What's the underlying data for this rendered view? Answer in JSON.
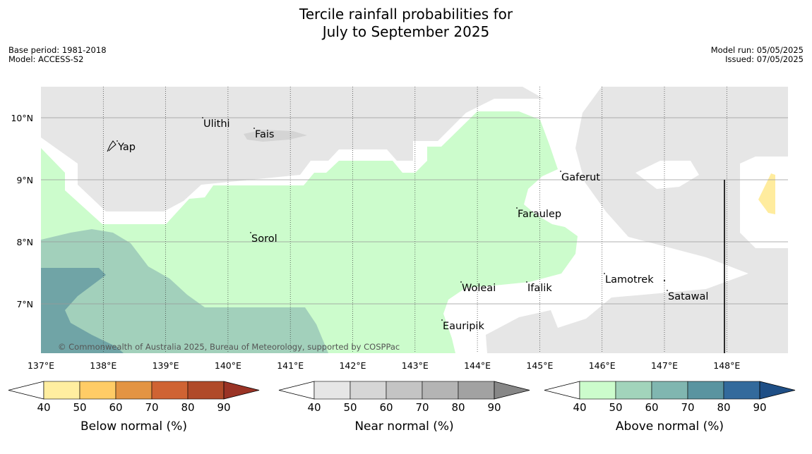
{
  "title": {
    "line1": "Tercile rainfall probabilities for",
    "line2": "July to September 2025"
  },
  "meta": {
    "base_period": "Base period: 1981-2018",
    "model": "Model: ACCESS-S2",
    "model_run": "Model run: 05/05/2025",
    "issued": "Issued: 07/05/2025"
  },
  "map": {
    "lon_ticks": [
      "137°E",
      "138°E",
      "139°E",
      "140°E",
      "141°E",
      "142°E",
      "143°E",
      "144°E",
      "145°E",
      "146°E",
      "147°E",
      "148°E"
    ],
    "lat_ticks": [
      "10°N",
      "9°N",
      "8°N",
      "7°N"
    ],
    "places": [
      "Ulithi",
      "Fais",
      "Yap",
      "Gaferut",
      "Faraulep",
      "Sorol",
      "Lamotrek",
      "Woleai",
      "Ifalik",
      "Satawal",
      "Eauripik"
    ],
    "copyright": "© Commonwealth of Australia 2025, Bureau of Meteorology, supported by COSPPac",
    "colors": {
      "land_mask": "#e6e6e6",
      "above_40": "#ccfccc",
      "above_50": "#a2d4bb",
      "above_60": "#72a8a8",
      "below_40": "#ffec9e"
    }
  },
  "legends": [
    {
      "label": "Below normal (%)",
      "ticks": [
        "40",
        "50",
        "60",
        "70",
        "80",
        "90"
      ],
      "colors": [
        "#ffffff",
        "#ffeea0",
        "#ffcc66",
        "#e39443",
        "#cf6333",
        "#b04a29",
        "#9a3325"
      ]
    },
    {
      "label": "Near normal (%)",
      "ticks": [
        "40",
        "50",
        "60",
        "70",
        "80",
        "90"
      ],
      "colors": [
        "#ffffff",
        "#e6e6e6",
        "#d6d6d6",
        "#c4c4c4",
        "#b4b4b4",
        "#a2a2a2",
        "#878787"
      ]
    },
    {
      "label": "Above normal (%)",
      "ticks": [
        "40",
        "50",
        "60",
        "70",
        "80",
        "90"
      ],
      "colors": [
        "#ffffff",
        "#ccfccc",
        "#a2d4bb",
        "#80b6b0",
        "#5a94a0",
        "#336a9c",
        "#1f4f86"
      ]
    }
  ]
}
